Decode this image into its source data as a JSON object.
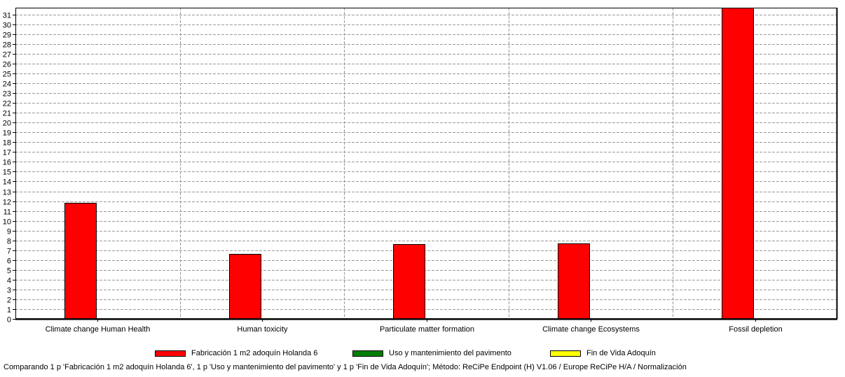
{
  "chart_data": {
    "type": "bar",
    "categories": [
      "Climate change Human Health",
      "Human toxicity",
      "Particulate matter formation",
      "Climate change Ecosystems",
      "Fossil depletion"
    ],
    "series": [
      {
        "name": "Fabricación 1 m2 adoquín Holanda 6",
        "color": "#ff0000",
        "values": [
          11.8,
          6.6,
          7.6,
          7.7,
          31.7
        ]
      },
      {
        "name": "Uso y mantenimiento del pavimento",
        "color": "#008000",
        "values": [
          0,
          0,
          0,
          0,
          0
        ]
      },
      {
        "name": "Fin de Vida Adoquín",
        "color": "#ffff00",
        "values": [
          0,
          0,
          0,
          0,
          0
        ]
      }
    ],
    "ylim": [
      0,
      31.7
    ],
    "yticks": [
      0,
      1,
      2,
      3,
      4,
      5,
      6,
      7,
      8,
      9,
      10,
      11,
      12,
      13,
      14,
      15,
      16,
      17,
      18,
      19,
      20,
      21,
      22,
      23,
      24,
      25,
      26,
      27,
      28,
      29,
      30,
      31
    ],
    "grid": true,
    "legend_position": "bottom"
  },
  "caption": "Comparando 1 p 'Fabricación 1 m2 adoquín Holanda 6', 1 p 'Uso y mantenimiento del pavimento' y 1 p 'Fin de Vida Adoquín';  Método: ReCiPe Endpoint (H) V1.06 / Europe ReCiPe H/A / Normalización"
}
